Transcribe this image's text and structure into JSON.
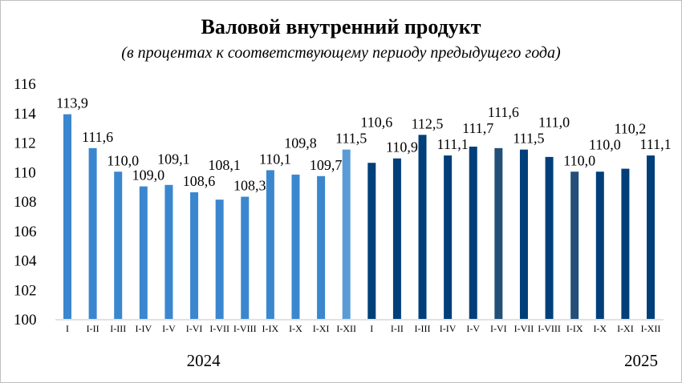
{
  "chart_data": {
    "type": "bar",
    "title": "Валовой внутренний продукт",
    "subtitle": "(в процентах к соответствующему периоду предыдущего года)",
    "xlabel": "",
    "ylabel": "",
    "ylim": [
      100,
      116
    ],
    "yticks": [
      100,
      102,
      104,
      106,
      108,
      110,
      112,
      114,
      116
    ],
    "grid": false,
    "categories": [
      "I",
      "I-II",
      "I-III",
      "I-IV",
      "I-V",
      "I-VI",
      "I-VII",
      "I-VIII",
      "I-IX",
      "I-X",
      "I-XI",
      "I-XII",
      "I",
      "I-II",
      "I-III",
      "I-IV",
      "I-V",
      "I-VI",
      "I-VII",
      "I-VIII",
      "I-IX",
      "I-X",
      "I-XI",
      "I-XII"
    ],
    "values": [
      113.9,
      111.6,
      110.0,
      109.0,
      109.1,
      108.6,
      108.1,
      108.3,
      110.1,
      109.8,
      109.7,
      111.5,
      110.6,
      110.9,
      112.5,
      111.1,
      111.7,
      111.6,
      111.5,
      111.0,
      110.0,
      110.0,
      110.2,
      111.1
    ],
    "data_labels": [
      "113,9",
      "111,6",
      "110,0",
      "109,0",
      "109,1",
      "108,6",
      "108,1",
      "108,3",
      "110,1",
      "109,8",
      "109,7",
      "111,5",
      "110,6",
      "110,9",
      "112,5",
      "111,1",
      "111,7",
      "111,6",
      "111,5",
      "111,0",
      "110,0",
      "110,0",
      "110,2",
      "111,1"
    ],
    "bar_colors": [
      "#3a87cf",
      "#3a87cf",
      "#3a87cf",
      "#3a87cf",
      "#3a87cf",
      "#3a87cf",
      "#3a87cf",
      "#3a87cf",
      "#3a87cf",
      "#3a87cf",
      "#3a87cf",
      "#5b9bd5",
      "#003f7a",
      "#003f7a",
      "#003f7a",
      "#003f7a",
      "#003f7a",
      "#234f78",
      "#003f7a",
      "#003f7a",
      "#234f78",
      "#003f7a",
      "#003f7a",
      "#003f7a"
    ],
    "groups": [
      {
        "label": "2024",
        "from": 0,
        "to": 11
      },
      {
        "label": "2025",
        "from": 12,
        "to": 23
      }
    ]
  }
}
